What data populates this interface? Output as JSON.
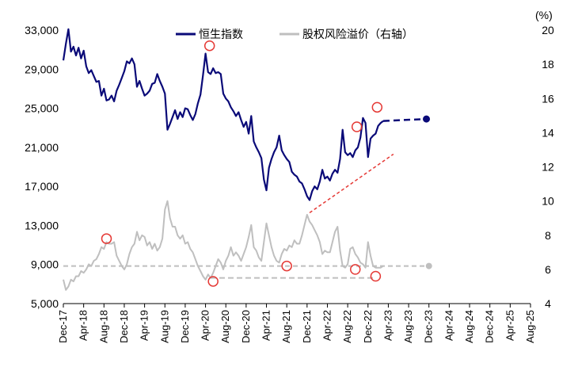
{
  "chart_data": {
    "type": "line",
    "title": "",
    "legend_position": "top-center",
    "unit_label_right": "(%)",
    "series": [
      {
        "name": "恒生指数",
        "axis": "left",
        "color": "#0a0a78",
        "style": "solid",
        "values": [
          [
            0,
            29900
          ],
          [
            0.5,
            31600
          ],
          [
            1,
            33100
          ],
          [
            1.5,
            30800
          ],
          [
            2,
            31300
          ],
          [
            2.5,
            30400
          ],
          [
            3,
            31200
          ],
          [
            3.5,
            30100
          ],
          [
            4,
            30900
          ],
          [
            4.5,
            29300
          ],
          [
            5,
            28600
          ],
          [
            5.5,
            28900
          ],
          [
            6,
            28300
          ],
          [
            6.5,
            27700
          ],
          [
            7,
            27800
          ],
          [
            7.5,
            26300
          ],
          [
            8,
            27000
          ],
          [
            8.5,
            25800
          ],
          [
            9,
            25900
          ],
          [
            9.5,
            26300
          ],
          [
            10,
            25700
          ],
          [
            10.5,
            26800
          ],
          [
            11,
            27400
          ],
          [
            11.5,
            28100
          ],
          [
            12,
            28800
          ],
          [
            12.5,
            29800
          ],
          [
            13,
            29600
          ],
          [
            13.5,
            30100
          ],
          [
            14,
            29500
          ],
          [
            14.5,
            27200
          ],
          [
            15,
            27800
          ],
          [
            15.5,
            27000
          ],
          [
            16,
            26300
          ],
          [
            16.5,
            26500
          ],
          [
            17,
            26800
          ],
          [
            17.5,
            27500
          ],
          [
            18,
            27600
          ],
          [
            18.5,
            28500
          ],
          [
            19,
            27800
          ],
          [
            19.5,
            27200
          ],
          [
            20,
            26500
          ],
          [
            20.5,
            22800
          ],
          [
            21,
            23400
          ],
          [
            21.5,
            24100
          ],
          [
            22,
            24800
          ],
          [
            22.5,
            23900
          ],
          [
            23,
            24600
          ],
          [
            23.5,
            24100
          ],
          [
            24,
            25000
          ],
          [
            24.5,
            24900
          ],
          [
            25,
            24300
          ],
          [
            25.5,
            23800
          ],
          [
            26,
            24400
          ],
          [
            26.5,
            25500
          ],
          [
            27,
            26400
          ],
          [
            27.5,
            28400
          ],
          [
            28,
            30600
          ],
          [
            28.5,
            28700
          ],
          [
            29,
            28500
          ],
          [
            29.5,
            29100
          ],
          [
            30,
            28600
          ],
          [
            30.5,
            28700
          ],
          [
            31,
            28500
          ],
          [
            31.5,
            26500
          ],
          [
            32,
            26000
          ],
          [
            32.5,
            25700
          ],
          [
            33,
            25100
          ],
          [
            33.5,
            24700
          ],
          [
            34,
            24200
          ],
          [
            34.5,
            24600
          ],
          [
            35,
            23800
          ],
          [
            35.5,
            23100
          ],
          [
            36,
            23600
          ],
          [
            36.5,
            22400
          ],
          [
            37,
            24200
          ],
          [
            37.5,
            21600
          ],
          [
            38,
            21000
          ],
          [
            38.5,
            20500
          ],
          [
            39,
            19900
          ],
          [
            39.5,
            17700
          ],
          [
            40,
            16600
          ],
          [
            40.5,
            18900
          ],
          [
            41,
            19800
          ],
          [
            41.5,
            20500
          ],
          [
            42,
            21000
          ],
          [
            42.5,
            22200
          ],
          [
            43,
            20700
          ],
          [
            43.5,
            20200
          ],
          [
            44,
            19800
          ],
          [
            44.5,
            19500
          ],
          [
            45,
            18500
          ],
          [
            45.5,
            18200
          ],
          [
            46,
            18000
          ],
          [
            46.5,
            17500
          ],
          [
            47,
            17300
          ],
          [
            47.5,
            16700
          ],
          [
            48,
            16000
          ],
          [
            48.5,
            15600
          ],
          [
            49,
            16500
          ],
          [
            49.5,
            17000
          ],
          [
            50,
            16700
          ],
          [
            50.5,
            17500
          ],
          [
            51,
            18700
          ],
          [
            51.5,
            17800
          ],
          [
            52,
            18000
          ],
          [
            52.5,
            17600
          ],
          [
            53,
            18300
          ],
          [
            53.5,
            18700
          ],
          [
            54,
            18400
          ],
          [
            54.5,
            19800
          ],
          [
            55,
            22800
          ],
          [
            55.5,
            20500
          ],
          [
            56,
            20200
          ],
          [
            56.5,
            20400
          ],
          [
            57,
            20000
          ],
          [
            57.5,
            20700
          ],
          [
            58,
            21000
          ],
          [
            58.5,
            22000
          ],
          [
            59,
            24000
          ],
          [
            59.5,
            23500
          ],
          [
            60,
            20000
          ],
          [
            60.5,
            21900
          ],
          [
            61,
            22200
          ],
          [
            61.5,
            22400
          ],
          [
            62,
            23200
          ],
          [
            62.5,
            23500
          ],
          [
            63,
            23700
          ]
        ]
      },
      {
        "name": "股权风险溢价（右轴）",
        "axis": "right",
        "color": "#bfbfbf",
        "style": "solid",
        "values": [
          [
            0,
            5.4
          ],
          [
            0.5,
            4.8
          ],
          [
            1,
            5.0
          ],
          [
            1.5,
            5.4
          ],
          [
            2,
            5.3
          ],
          [
            2.5,
            5.6
          ],
          [
            3,
            5.6
          ],
          [
            3.5,
            5.9
          ],
          [
            4,
            5.8
          ],
          [
            4.5,
            6.0
          ],
          [
            5,
            6.3
          ],
          [
            5.5,
            6.2
          ],
          [
            6,
            6.5
          ],
          [
            6.5,
            6.6
          ],
          [
            7,
            6.9
          ],
          [
            7.5,
            7.3
          ],
          [
            8,
            7.2
          ],
          [
            8.5,
            7.6
          ],
          [
            9,
            7.5
          ],
          [
            9.5,
            7.5
          ],
          [
            10,
            7.6
          ],
          [
            10.5,
            6.8
          ],
          [
            11,
            6.5
          ],
          [
            11.5,
            6.2
          ],
          [
            12,
            6.0
          ],
          [
            12.5,
            6.3
          ],
          [
            13,
            6.9
          ],
          [
            13.5,
            7.3
          ],
          [
            14,
            7.5
          ],
          [
            14.5,
            8.2
          ],
          [
            15,
            7.7
          ],
          [
            15.5,
            8.0
          ],
          [
            16,
            7.9
          ],
          [
            16.5,
            7.4
          ],
          [
            17,
            7.6
          ],
          [
            17.5,
            7.2
          ],
          [
            18,
            7.5
          ],
          [
            18.5,
            7.1
          ],
          [
            19,
            7.3
          ],
          [
            19.5,
            7.8
          ],
          [
            20,
            9.5
          ],
          [
            20.5,
            10.0
          ],
          [
            21,
            9.0
          ],
          [
            21.5,
            8.5
          ],
          [
            22,
            8.5
          ],
          [
            22.5,
            8.0
          ],
          [
            23,
            7.8
          ],
          [
            23.5,
            8.0
          ],
          [
            24,
            7.5
          ],
          [
            24.5,
            7.6
          ],
          [
            25,
            7.2
          ],
          [
            25.5,
            7.0
          ],
          [
            26,
            6.6
          ],
          [
            26.5,
            6.2
          ],
          [
            27,
            5.9
          ],
          [
            27.5,
            5.6
          ],
          [
            28,
            5.4
          ],
          [
            28.5,
            5.7
          ],
          [
            29,
            5.5
          ],
          [
            29.5,
            5.8
          ],
          [
            30,
            6.2
          ],
          [
            30.5,
            6.6
          ],
          [
            31,
            6.4
          ],
          [
            31.5,
            6.0
          ],
          [
            32,
            6.5
          ],
          [
            32.5,
            6.8
          ],
          [
            33,
            7.3
          ],
          [
            33.5,
            6.8
          ],
          [
            34,
            7.0
          ],
          [
            34.5,
            6.8
          ],
          [
            35,
            6.5
          ],
          [
            35.5,
            6.9
          ],
          [
            36,
            7.3
          ],
          [
            36.5,
            7.9
          ],
          [
            37,
            8.6
          ],
          [
            37.5,
            7.3
          ],
          [
            38,
            7.1
          ],
          [
            38.5,
            6.7
          ],
          [
            39,
            6.5
          ],
          [
            39.5,
            7.6
          ],
          [
            40,
            8.7
          ],
          [
            40.5,
            8.0
          ],
          [
            41,
            7.3
          ],
          [
            41.5,
            6.8
          ],
          [
            42,
            6.5
          ],
          [
            42.5,
            6.4
          ],
          [
            43,
            6.9
          ],
          [
            43.5,
            7.2
          ],
          [
            44,
            7.1
          ],
          [
            44.5,
            7.4
          ],
          [
            45,
            7.3
          ],
          [
            45.5,
            7.7
          ],
          [
            46,
            7.5
          ],
          [
            46.5,
            7.5
          ],
          [
            47,
            8.0
          ],
          [
            47.5,
            8.6
          ],
          [
            48,
            9.2
          ],
          [
            48.5,
            8.8
          ],
          [
            49,
            8.6
          ],
          [
            49.5,
            8.3
          ],
          [
            50,
            8.0
          ],
          [
            50.5,
            7.6
          ],
          [
            51,
            6.9
          ],
          [
            51.5,
            7.1
          ],
          [
            52,
            7.0
          ],
          [
            52.5,
            7.0
          ],
          [
            53,
            7.6
          ],
          [
            53.5,
            8.2
          ],
          [
            54,
            8.5
          ],
          [
            54.5,
            7.1
          ],
          [
            55,
            6.2
          ],
          [
            55.5,
            6.1
          ],
          [
            56,
            6.3
          ],
          [
            56.5,
            7.2
          ],
          [
            57,
            7.3
          ],
          [
            57.5,
            6.9
          ],
          [
            58,
            6.7
          ],
          [
            58.5,
            6.4
          ],
          [
            59,
            6.3
          ],
          [
            59.5,
            6.1
          ],
          [
            60,
            7.6
          ],
          [
            60.5,
            6.8
          ],
          [
            61,
            6.2
          ],
          [
            61.5,
            6.1
          ],
          [
            62,
            6.1
          ],
          [
            62.5,
            6.1
          ],
          [
            63,
            6.2
          ]
        ]
      }
    ],
    "annotations": {
      "hsi_projection": {
        "color": "#0a0a78",
        "style": "dashed",
        "from": [
          63,
          23700
        ],
        "to": [
          71.5,
          23900
        ],
        "end_marker": "dot"
      },
      "erp_current_level": {
        "color": "#bfbfbf",
        "style": "dashed",
        "value": 6.2,
        "from_x": 0,
        "to_x": 72,
        "end_marker": "dot"
      },
      "erp_low_band": {
        "color": "#bfbfbf",
        "style": "dashed",
        "value": 5.5,
        "from_x": 29,
        "to_x": 61
      },
      "hsi_support_trend": {
        "color": "#e53935",
        "style": "dashed",
        "from": [
          48.5,
          14300
        ],
        "to": [
          65,
          20300
        ]
      },
      "highlighted_hsi_points": [
        [
          28.8,
          31400
        ],
        [
          57.8,
          23100
        ],
        [
          61.8,
          25100
        ]
      ],
      "highlighted_erp_points": [
        [
          8.5,
          7.8
        ],
        [
          29.5,
          5.3
        ],
        [
          44,
          6.2
        ],
        [
          57.5,
          6.0
        ],
        [
          61.5,
          5.6
        ]
      ],
      "highlight_color": "#e53935"
    },
    "x_ticks": [
      {
        "label": "Dec-17",
        "x": 0
      },
      {
        "label": "Apr-18",
        "x": 4
      },
      {
        "label": "Aug-18",
        "x": 8
      },
      {
        "label": "Dec-18",
        "x": 12
      },
      {
        "label": "Apr-19",
        "x": 16
      },
      {
        "label": "Aug-19",
        "x": 20
      },
      {
        "label": "Dec-19",
        "x": 24
      },
      {
        "label": "Apr-20",
        "x": 28
      },
      {
        "label": "Aug-20",
        "x": 32
      },
      {
        "label": "Dec-20",
        "x": 36
      },
      {
        "label": "Apr-21",
        "x": 40
      },
      {
        "label": "Aug-21",
        "x": 44
      },
      {
        "label": "Dec-21",
        "x": 48
      },
      {
        "label": "Apr-22",
        "x": 52
      },
      {
        "label": "Aug-22",
        "x": 56
      },
      {
        "label": "Dec-22",
        "x": 60
      },
      {
        "label": "Apr-23",
        "x": 64
      },
      {
        "label": "Aug-23",
        "x": 68
      },
      {
        "label": "Dec-23",
        "x": 72
      },
      {
        "label": "Apr-24",
        "x": 76
      },
      {
        "label": "Aug-24",
        "x": 80
      },
      {
        "label": "Dec-24",
        "x": 84
      },
      {
        "label": "Apr-25",
        "x": 88
      },
      {
        "label": "Aug-25",
        "x": 92
      }
    ],
    "x_range": [
      0,
      92
    ],
    "y_left": {
      "range": [
        5000,
        33000
      ],
      "ticks": [
        5000,
        9000,
        13000,
        17000,
        21000,
        25000,
        29000,
        33000
      ],
      "tick_labels": [
        "5,000",
        "9,000",
        "13,000",
        "17,000",
        "21,000",
        "25,000",
        "29,000",
        "33,000"
      ]
    },
    "y_right": {
      "range": [
        4,
        20
      ],
      "ticks": [
        4,
        6,
        8,
        10,
        12,
        14,
        16,
        18,
        20
      ],
      "tick_labels": [
        "4",
        "6",
        "8",
        "10",
        "12",
        "14",
        "16",
        "18",
        "20"
      ]
    }
  }
}
